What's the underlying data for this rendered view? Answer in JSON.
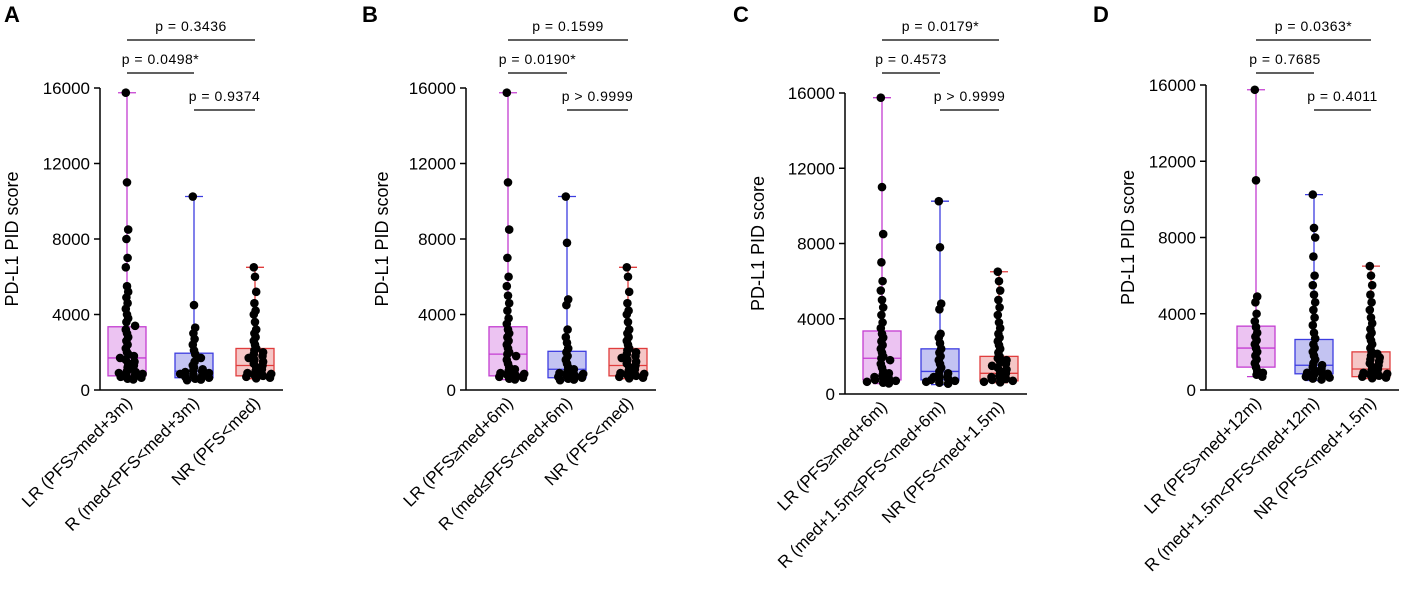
{
  "chart_data": [
    {
      "panel": "A",
      "type": "box",
      "ylabel": "PD-L1 PID score",
      "ylim": [
        0,
        16000
      ],
      "yticks": [
        0,
        4000,
        8000,
        12000,
        16000
      ],
      "yticklabels": [
        "0",
        "4000",
        "8000",
        "12000",
        "16000"
      ],
      "categories": [
        "LR (PFS>med+3m)",
        "R (med<PFS<med+3m)",
        "NR (PFS<med)"
      ],
      "colors": [
        "#c43dd1",
        "#3d3de0",
        "#e03d3d"
      ],
      "fills": [
        "#ecc3f2",
        "#c3c3f2",
        "#f5c6c6"
      ],
      "boxes": [
        {
          "min": 550,
          "q1": 750,
          "median": 1700,
          "q3": 3350,
          "max": 15750,
          "points": [
            15750,
            11000,
            8500,
            8000,
            7000,
            6500,
            5500,
            5200,
            4900,
            4600,
            4300,
            4000,
            3800,
            3600,
            3400,
            3200,
            3000,
            2800,
            2600,
            2400,
            2200,
            2000,
            1900,
            1800,
            1700,
            1600,
            1500,
            1400,
            1300,
            1200,
            1100,
            1000,
            950,
            900,
            850,
            800,
            750,
            700,
            650,
            600,
            560
          ]
        },
        {
          "min": 500,
          "q1": 650,
          "median": 1000,
          "q3": 1950,
          "max": 10250,
          "points": [
            10250,
            4500,
            3300,
            3000,
            2700,
            2400,
            2100,
            1900,
            1700,
            1500,
            1300,
            1200,
            1100,
            1050,
            1000,
            950,
            900,
            850,
            800,
            750,
            700,
            650,
            600,
            550,
            520
          ]
        },
        {
          "min": 600,
          "q1": 750,
          "median": 1300,
          "q3": 2200,
          "max": 6500,
          "points": [
            6500,
            6000,
            5200,
            4600,
            4200,
            4000,
            3600,
            3200,
            3000,
            2800,
            2600,
            2400,
            2200,
            2100,
            2000,
            1900,
            1800,
            1700,
            1600,
            1500,
            1400,
            1300,
            1200,
            1100,
            1000,
            950,
            900,
            850,
            800,
            750,
            700,
            650,
            620
          ]
        }
      ],
      "comparisons": [
        {
          "from": 0,
          "to": 2,
          "label": "p = 0.3436",
          "level": 3
        },
        {
          "from": 0,
          "to": 1,
          "label": "p = 0.0498*",
          "level": 2
        },
        {
          "from": 1,
          "to": 2,
          "label": "p = 0.9374",
          "level": 1
        }
      ]
    },
    {
      "panel": "B",
      "type": "box",
      "ylabel": "PD-L1 PID score",
      "ylim": [
        0,
        16000
      ],
      "yticks": [
        0,
        4000,
        8000,
        12000,
        16000
      ],
      "yticklabels": [
        "0",
        "4000",
        "8000",
        "12000",
        "16000"
      ],
      "categories": [
        "LR (PFS≥med+6m)",
        "R (med≤PFS<med+6m)",
        "NR (PFS<med)"
      ],
      "colors": [
        "#c43dd1",
        "#3d3de0",
        "#e03d3d"
      ],
      "fills": [
        "#ecc3f2",
        "#c3c3f2",
        "#f5c6c6"
      ],
      "boxes": [
        {
          "min": 550,
          "q1": 750,
          "median": 1900,
          "q3": 3350,
          "max": 15750,
          "points": [
            15750,
            11000,
            8500,
            7000,
            6000,
            5500,
            5000,
            4600,
            4200,
            3800,
            3500,
            3200,
            3000,
            2800,
            2600,
            2400,
            2200,
            2000,
            1900,
            1800,
            1600,
            1400,
            1200,
            1100,
            1000,
            950,
            900,
            850,
            800,
            750,
            700,
            650,
            600,
            560
          ]
        },
        {
          "min": 500,
          "q1": 650,
          "median": 1100,
          "q3": 2050,
          "max": 10250,
          "points": [
            10250,
            7800,
            4800,
            4500,
            3200,
            2800,
            2500,
            2200,
            2000,
            1800,
            1600,
            1400,
            1200,
            1100,
            1000,
            950,
            900,
            850,
            800,
            750,
            700,
            650,
            600,
            550,
            520
          ]
        },
        {
          "min": 600,
          "q1": 750,
          "median": 1300,
          "q3": 2200,
          "max": 6500,
          "points": [
            6500,
            6000,
            5200,
            4600,
            4200,
            4000,
            3600,
            3200,
            3000,
            2800,
            2600,
            2400,
            2200,
            2100,
            2000,
            1900,
            1800,
            1700,
            1600,
            1500,
            1400,
            1300,
            1200,
            1100,
            1000,
            950,
            900,
            850,
            800,
            750,
            700,
            650,
            620
          ]
        }
      ],
      "comparisons": [
        {
          "from": 0,
          "to": 2,
          "label": "p = 0.1599",
          "level": 3
        },
        {
          "from": 0,
          "to": 1,
          "label": "p = 0.0190*",
          "level": 2
        },
        {
          "from": 1,
          "to": 2,
          "label": "p > 0.9999",
          "level": 1
        }
      ]
    },
    {
      "panel": "C",
      "type": "box",
      "ylabel": "PD-L1 PID score",
      "ylim": [
        0,
        16000
      ],
      "yticks": [
        0,
        4000,
        8000,
        12000,
        16000
      ],
      "yticklabels": [
        "0",
        "4000",
        "8000",
        "12000",
        "16000"
      ],
      "categories": [
        "LR (PFS≥med+6m)",
        "R (med+1.5m≤PFS<med+6m)",
        "NR (PFS<med+1.5m)"
      ],
      "colors": [
        "#c43dd1",
        "#3d3de0",
        "#e03d3d"
      ],
      "fills": [
        "#ecc3f2",
        "#c3c3f2",
        "#f5c6c6"
      ],
      "boxes": [
        {
          "min": 550,
          "q1": 750,
          "median": 1900,
          "q3": 3350,
          "max": 15750,
          "points": [
            15750,
            11000,
            8500,
            7000,
            6000,
            5500,
            5000,
            4600,
            4200,
            3800,
            3500,
            3200,
            3000,
            2800,
            2600,
            2400,
            2200,
            2000,
            1900,
            1800,
            1600,
            1400,
            1200,
            1100,
            1000,
            950,
            900,
            850,
            800,
            750,
            700,
            650,
            600,
            560
          ]
        },
        {
          "min": 500,
          "q1": 750,
          "median": 1200,
          "q3": 2400,
          "max": 10250,
          "points": [
            10250,
            7800,
            4800,
            4500,
            3200,
            3000,
            2700,
            2400,
            2200,
            2000,
            1800,
            1600,
            1400,
            1200,
            1100,
            1000,
            950,
            900,
            850,
            800,
            750,
            700,
            650,
            600,
            550
          ]
        },
        {
          "min": 600,
          "q1": 700,
          "median": 1100,
          "q3": 2000,
          "max": 6500,
          "points": [
            6500,
            6000,
            5500,
            5000,
            4600,
            4200,
            3800,
            3500,
            3200,
            3000,
            2800,
            2600,
            2400,
            2200,
            2000,
            1900,
            1800,
            1700,
            1600,
            1500,
            1400,
            1300,
            1200,
            1100,
            1000,
            950,
            900,
            850,
            800,
            750,
            700,
            650,
            620
          ]
        }
      ],
      "comparisons": [
        {
          "from": 0,
          "to": 2,
          "label": "p = 0.0179*",
          "level": 3
        },
        {
          "from": 0,
          "to": 1,
          "label": "p = 0.4573",
          "level": 2
        },
        {
          "from": 1,
          "to": 2,
          "label": "p > 0.9999",
          "level": 1
        }
      ]
    },
    {
      "panel": "D",
      "type": "box",
      "ylabel": "PD-L1 PID score",
      "ylim": [
        0,
        16000
      ],
      "yticks": [
        0,
        4000,
        8000,
        12000,
        16000
      ],
      "yticklabels": [
        "0",
        "4000",
        "8000",
        "12000",
        "16000"
      ],
      "categories": [
        "LR (PFS>med+12m)",
        "R (med+1.5m<PFS<med+12m)",
        "NR (PFS<med+1.5m)"
      ],
      "colors": [
        "#c43dd1",
        "#3d3de0",
        "#e03d3d"
      ],
      "fills": [
        "#ecc3f2",
        "#c3c3f2",
        "#f5c6c6"
      ],
      "boxes": [
        {
          "min": 700,
          "q1": 1200,
          "median": 2200,
          "q3": 3350,
          "max": 15750,
          "points": [
            15750,
            11000,
            4900,
            4600,
            4000,
            3600,
            3300,
            3000,
            2800,
            2600,
            2400,
            2200,
            2000,
            1800,
            1600,
            1400,
            1200,
            1000,
            900,
            800,
            700
          ]
        },
        {
          "min": 500,
          "q1": 850,
          "median": 1300,
          "q3": 2650,
          "max": 10250,
          "points": [
            10250,
            8500,
            8000,
            7000,
            6000,
            5500,
            5000,
            4600,
            4200,
            3800,
            3400,
            3000,
            2700,
            2400,
            2200,
            2000,
            1800,
            1600,
            1400,
            1300,
            1200,
            1100,
            1000,
            950,
            900,
            850,
            800,
            750,
            700,
            650,
            600,
            550
          ]
        },
        {
          "min": 600,
          "q1": 700,
          "median": 1100,
          "q3": 2000,
          "max": 6500,
          "points": [
            6500,
            6000,
            5500,
            5000,
            4600,
            4200,
            3800,
            3500,
            3200,
            3000,
            2800,
            2600,
            2400,
            2200,
            2000,
            1900,
            1800,
            1700,
            1600,
            1500,
            1400,
            1300,
            1200,
            1100,
            1000,
            950,
            900,
            850,
            800,
            750,
            700,
            650,
            620
          ]
        }
      ],
      "comparisons": [
        {
          "from": 0,
          "to": 2,
          "label": "p = 0.0363*",
          "level": 3
        },
        {
          "from": 0,
          "to": 1,
          "label": "p = 0.7685",
          "level": 2
        },
        {
          "from": 1,
          "to": 2,
          "label": "p = 0.4011",
          "level": 1
        }
      ]
    }
  ]
}
